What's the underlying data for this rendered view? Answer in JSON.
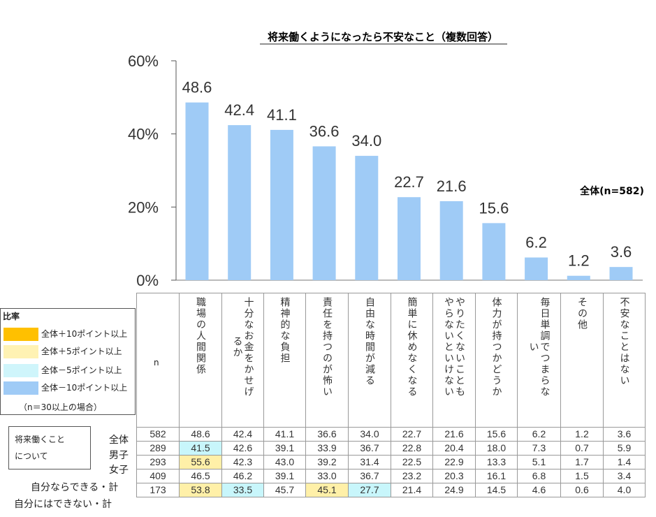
{
  "chart_data": {
    "type": "bar",
    "title": "将来働くようになったら不安なこと（複数回答）",
    "sample_label": "全体(n=582)",
    "ylim": [
      0,
      60
    ],
    "yticks": [
      "0%",
      "20%",
      "40%",
      "60%"
    ],
    "ytick_values": [
      0,
      20,
      40,
      60
    ],
    "categories": [
      "職場の人間関係",
      "十分なお金をかせげるか",
      "精神的な負担",
      "責任を持つのが怖い",
      "自由な時間が減る",
      "簡単に休めなくなる",
      "やりたくないこともやらないといけない",
      "体力が持つかどうか",
      "毎日単調でつまらない",
      "その他",
      "不安なことはない"
    ],
    "values": [
      48.6,
      42.4,
      41.1,
      36.6,
      34.0,
      22.7,
      21.6,
      15.6,
      6.2,
      1.2,
      3.6
    ],
    "value_labels": [
      "48.6",
      "42.4",
      "41.1",
      "36.6",
      "34.0",
      "22.7",
      "21.6",
      "15.6",
      "6.2",
      "1.2",
      "3.6"
    ],
    "bar_color": "#9fcbf6"
  },
  "header_columns": [
    [
      "職場の人間関係"
    ],
    [
      "十分なお金をかせげ",
      "るか"
    ],
    [
      "精神的な負担"
    ],
    [
      "責任を持つのが怖い"
    ],
    [
      "自由な時間が減る"
    ],
    [
      "簡単に休めなくなる"
    ],
    [
      "やりたくないことも",
      "やらないといけない"
    ],
    [
      "体力が持つかどうか"
    ],
    [
      "毎日単調でつまらな",
      "い"
    ],
    [
      "その他"
    ],
    [
      "不安なことはない"
    ]
  ],
  "n_header": "n",
  "legend": {
    "title": "比率",
    "items": [
      {
        "label": "全体＋10ポイント以上",
        "color": "#ffc000"
      },
      {
        "label": "全体＋5ポイント以上",
        "color": "#fff2b3"
      },
      {
        "label": "全体－5ポイント以上",
        "color": "#cff5fb"
      },
      {
        "label": "全体－10ポイント以上",
        "color": "#9fcbf6"
      }
    ],
    "note": "（n＝30以上の場合）"
  },
  "callout": {
    "line1": "将来働くこと",
    "line2": "について"
  },
  "rows": [
    {
      "label": "全体",
      "n": "582",
      "values": [
        "48.6",
        "42.4",
        "41.1",
        "36.6",
        "34.0",
        "22.7",
        "21.6",
        "15.6",
        "6.2",
        "1.2",
        "3.6"
      ],
      "highlight": [
        "",
        "",
        "",
        "",
        "",
        "",
        "",
        "",
        "",
        "",
        ""
      ]
    },
    {
      "label": "男子",
      "n": "289",
      "values": [
        "41.5",
        "42.6",
        "39.1",
        "33.9",
        "36.7",
        "22.8",
        "20.4",
        "18.0",
        "7.3",
        "0.7",
        "5.9"
      ],
      "highlight": [
        "blue",
        "",
        "",
        "",
        "",
        "",
        "",
        "",
        "",
        "",
        ""
      ]
    },
    {
      "label": "女子",
      "n": "293",
      "values": [
        "55.6",
        "42.3",
        "43.0",
        "39.2",
        "31.4",
        "22.5",
        "22.9",
        "13.3",
        "5.1",
        "1.7",
        "1.4"
      ],
      "highlight": [
        "orange",
        "",
        "",
        "",
        "",
        "",
        "",
        "",
        "",
        "",
        ""
      ]
    },
    {
      "label": "自分ならできる・計",
      "n": "409",
      "values": [
        "46.5",
        "46.2",
        "39.1",
        "33.0",
        "36.7",
        "23.2",
        "20.3",
        "16.1",
        "6.8",
        "1.5",
        "3.4"
      ],
      "highlight": [
        "",
        "",
        "",
        "",
        "",
        "",
        "",
        "",
        "",
        "",
        ""
      ]
    },
    {
      "label": "自分にはできない・計",
      "n": "173",
      "values": [
        "53.8",
        "33.5",
        "45.7",
        "45.1",
        "27.7",
        "21.4",
        "24.9",
        "14.5",
        "4.6",
        "0.6",
        "4.0"
      ],
      "highlight": [
        "orange",
        "blue",
        "",
        "orange",
        "blue",
        "",
        "",
        "",
        "",
        "",
        ""
      ]
    }
  ]
}
